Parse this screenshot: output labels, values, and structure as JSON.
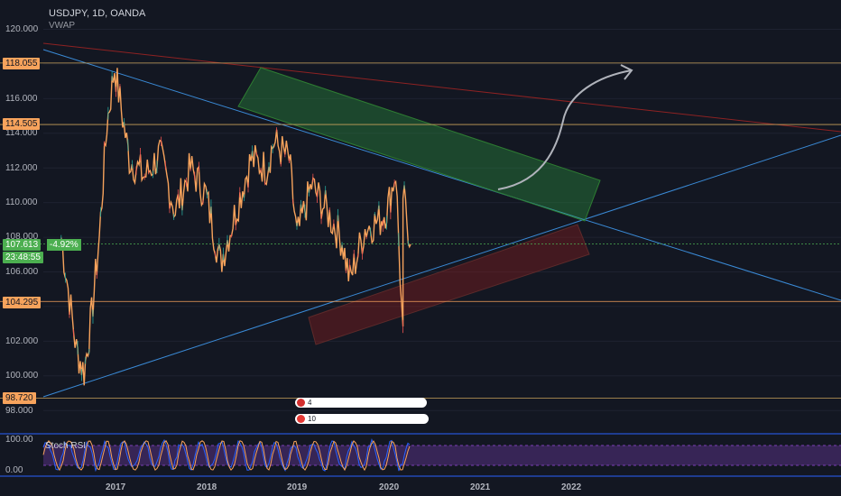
{
  "header": {
    "title": "USDJPY, 1D, OANDA",
    "indicator": "VWAP"
  },
  "price_axis": {
    "ticks": [
      "120.000",
      "116.000",
      "114.000",
      "112.000",
      "110.000",
      "108.000",
      "106.000",
      "102.000",
      "100.000",
      "98.000"
    ],
    "labels": {
      "l118": "118.055",
      "l114": "114.505",
      "last": "107.613",
      "countdown": "23:48:55",
      "l104": "104.295",
      "l98": "98.720"
    },
    "change": "-4.92%"
  },
  "time_axis": {
    "ticks": [
      "2017",
      "2018",
      "2019",
      "2020",
      "2021",
      "2022"
    ]
  },
  "stoch_rsi": {
    "label": "Stoch RSI",
    "ticks": [
      "100.00",
      "0.00"
    ]
  },
  "events": {
    "first": "4",
    "second": "10"
  },
  "colors": {
    "background": "#131722",
    "candle_up": "#26a69a",
    "candle_down": "#ef5350",
    "line": "#f7a35c",
    "trend": "#3a8ad6",
    "resistance": "#8e2222",
    "green_zone": "#1b5e20",
    "red_zone": "#5d1a1a",
    "rsi_fill": "#5b2b86"
  },
  "chart_data": {
    "type": "line",
    "title": "USDJPY, 1D, OANDA",
    "ylim": [
      97.0,
      121.0
    ],
    "x": [
      "2016-06",
      "2016-08",
      "2016-09",
      "2016-10",
      "2016-11",
      "2016-12",
      "2017-01",
      "2017-03",
      "2017-05",
      "2017-07",
      "2017-09",
      "2017-11",
      "2018-01",
      "2018-03",
      "2018-05",
      "2018-07",
      "2018-09",
      "2018-10",
      "2018-12",
      "2019-01",
      "2019-03",
      "2019-05",
      "2019-07",
      "2019-08",
      "2019-10",
      "2019-12",
      "2020-01",
      "2020-02",
      "2020-03",
      "2020-03",
      "2020-04"
    ],
    "series": [
      {
        "values": [
          108.0,
          101.5,
          100.2,
          103.5,
          108.0,
          114.5,
          117.8,
          112.5,
          111.5,
          112.8,
          109.5,
          112.0,
          110.5,
          106.5,
          109.5,
          112.5,
          112.0,
          113.5,
          112.5,
          108.0,
          111.0,
          109.5,
          107.8,
          105.5,
          108.5,
          109.0,
          109.8,
          111.8,
          102.0,
          110.5,
          107.6
        ]
      }
    ]
  }
}
